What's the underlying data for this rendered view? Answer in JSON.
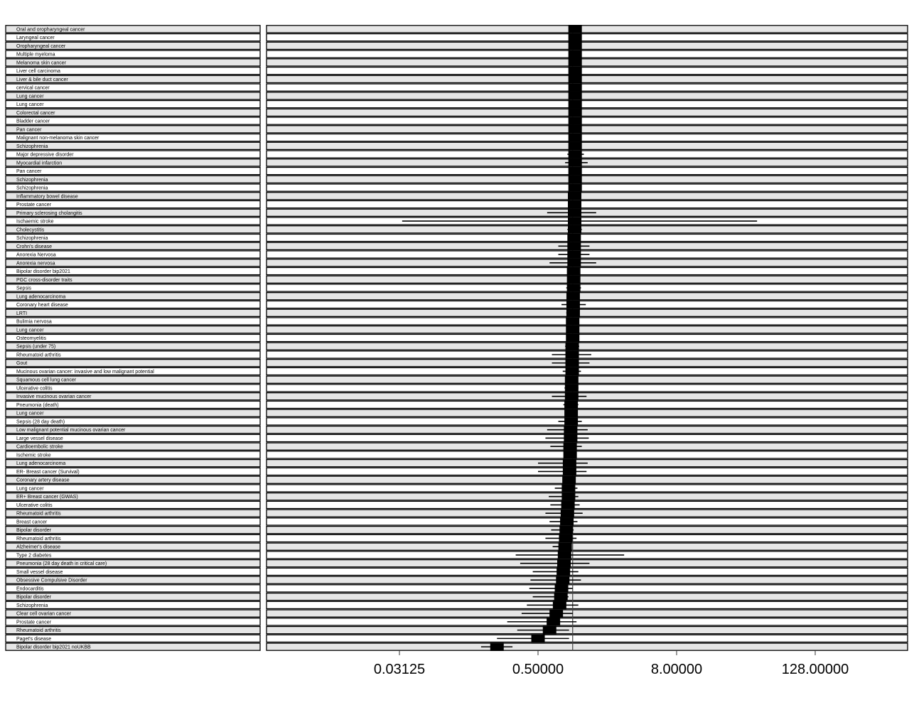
{
  "chart_data": {
    "type": "forest",
    "x_scale": "log2",
    "x_ticks": [
      0.03125,
      0.5,
      8,
      128
    ],
    "x_tick_labels": [
      "0.03125",
      "0.50000",
      "8.00000",
      "128.00000"
    ],
    "xlim": [
      0.0039,
      1000
    ],
    "reference_line": 1,
    "rows": [
      {
        "label": "Oral and oropharyngeal cancer",
        "or": 1.05,
        "lo": 1.0,
        "hi": 1.1
      },
      {
        "label": "Laryngeal cancer",
        "or": 1.05,
        "lo": 1.0,
        "hi": 1.1
      },
      {
        "label": "Oropharyngeal cancer",
        "or": 1.05,
        "lo": 1.0,
        "hi": 1.1
      },
      {
        "label": "Multiple myeloma",
        "or": 1.05,
        "lo": 1.0,
        "hi": 1.1
      },
      {
        "label": "Melanoma skin cancer",
        "or": 1.05,
        "lo": 1.0,
        "hi": 1.1
      },
      {
        "label": "Liver cell carcinoma",
        "or": 1.05,
        "lo": 1.0,
        "hi": 1.1
      },
      {
        "label": "Liver & bile duct cancer",
        "or": 1.05,
        "lo": 1.0,
        "hi": 1.1
      },
      {
        "label": "cervical cancer",
        "or": 1.05,
        "lo": 1.0,
        "hi": 1.1
      },
      {
        "label": "Lung cancer",
        "or": 1.05,
        "lo": 1.0,
        "hi": 1.1
      },
      {
        "label": "Lung cancer",
        "or": 1.05,
        "lo": 1.0,
        "hi": 1.1
      },
      {
        "label": "Colorectal cancer",
        "or": 1.05,
        "lo": 1.0,
        "hi": 1.1
      },
      {
        "label": "Bladder cancer",
        "or": 1.05,
        "lo": 1.0,
        "hi": 1.1
      },
      {
        "label": "Pan cancer",
        "or": 1.05,
        "lo": 1.0,
        "hi": 1.1
      },
      {
        "label": "Malignant non-melanoma skin cancer",
        "or": 1.05,
        "lo": 1.0,
        "hi": 1.1
      },
      {
        "label": "Schizophrenia",
        "or": 1.05,
        "lo": 1.0,
        "hi": 1.1
      },
      {
        "label": "Major depressive disorder",
        "or": 1.05,
        "lo": 0.9,
        "hi": 1.25
      },
      {
        "label": "Myocardial infarction",
        "or": 1.05,
        "lo": 0.86,
        "hi": 1.35
      },
      {
        "label": "Pan cancer",
        "or": 1.05,
        "lo": 1.0,
        "hi": 1.1
      },
      {
        "label": "Schizophrenia",
        "or": 1.05,
        "lo": 1.0,
        "hi": 1.1
      },
      {
        "label": "Schizophrenia",
        "or": 1.05,
        "lo": 1.0,
        "hi": 1.1
      },
      {
        "label": "Inflammatory bowel disease",
        "or": 1.04,
        "lo": 0.99,
        "hi": 1.1
      },
      {
        "label": "Prostate cancer",
        "or": 1.04,
        "lo": 0.99,
        "hi": 1.1
      },
      {
        "label": "Primary sclerosing cholangitis",
        "or": 1.04,
        "lo": 0.6,
        "hi": 1.6
      },
      {
        "label": "Ischaemic stroke",
        "or": 1.04,
        "lo": 0.033,
        "hi": 40
      },
      {
        "label": "Cholecystitis",
        "or": 1.04,
        "lo": 0.9,
        "hi": 1.2
      },
      {
        "label": "Schizophrenia",
        "or": 1.03,
        "lo": 0.98,
        "hi": 1.08
      },
      {
        "label": "Crohn's disease",
        "or": 1.03,
        "lo": 0.75,
        "hi": 1.4
      },
      {
        "label": "Anorexia Nervosa",
        "or": 1.03,
        "lo": 0.75,
        "hi": 1.4
      },
      {
        "label": "Anorexia nervosa",
        "or": 1.03,
        "lo": 0.63,
        "hi": 1.6
      },
      {
        "label": "Bipolar disorder bip2021",
        "or": 1.02,
        "lo": 0.96,
        "hi": 1.08
      },
      {
        "label": "PGC cross-disorder traits",
        "or": 1.02,
        "lo": 0.96,
        "hi": 1.08
      },
      {
        "label": "Sepsis",
        "or": 1.02,
        "lo": 0.88,
        "hi": 1.18
      },
      {
        "label": "Lung adenocarcinoma",
        "or": 1.01,
        "lo": 0.95,
        "hi": 1.07
      },
      {
        "label": "Coronary heart disease",
        "or": 1.01,
        "lo": 0.8,
        "hi": 1.3
      },
      {
        "label": "LRTI",
        "or": 1.01,
        "lo": 0.88,
        "hi": 1.14
      },
      {
        "label": "Bulimia nervosa",
        "or": 1.0,
        "lo": 0.94,
        "hi": 1.06
      },
      {
        "label": "Lung cancer",
        "or": 1.0,
        "lo": 0.94,
        "hi": 1.06
      },
      {
        "label": "Osteomyelitis",
        "or": 1.0,
        "lo": 0.94,
        "hi": 1.06
      },
      {
        "label": "Sepsis (under 75)",
        "or": 0.99,
        "lo": 0.86,
        "hi": 1.14
      },
      {
        "label": "Rheumatoid arthritis",
        "or": 0.99,
        "lo": 0.66,
        "hi": 1.45
      },
      {
        "label": "Gout",
        "or": 0.99,
        "lo": 0.66,
        "hi": 1.4
      },
      {
        "label": "Mucinous ovarian cancer: invasive and low malignant potential",
        "or": 0.99,
        "lo": 0.82,
        "hi": 1.18
      },
      {
        "label": "Squamous cell lung cancer",
        "or": 0.98,
        "lo": 0.92,
        "hi": 1.04
      },
      {
        "label": "Ulcerative colitis",
        "or": 0.98,
        "lo": 0.85,
        "hi": 1.12
      },
      {
        "label": "Invasive mucinous ovarian cancer",
        "or": 0.98,
        "lo": 0.66,
        "hi": 1.32
      },
      {
        "label": "Pneumonia (death)",
        "or": 0.97,
        "lo": 0.83,
        "hi": 1.12
      },
      {
        "label": "Lung cancer",
        "or": 0.97,
        "lo": 0.91,
        "hi": 1.03
      },
      {
        "label": "Sepsis (28 day death)",
        "or": 0.97,
        "lo": 0.75,
        "hi": 1.2
      },
      {
        "label": "Low malignant potential mucinous ovarian cancer",
        "or": 0.96,
        "lo": 0.6,
        "hi": 1.35
      },
      {
        "label": "Large vessel disease",
        "or": 0.96,
        "lo": 0.58,
        "hi": 1.38
      },
      {
        "label": "Cardioembolic stroke",
        "or": 0.95,
        "lo": 0.64,
        "hi": 1.2
      },
      {
        "label": "Ischemic stroke",
        "or": 0.95,
        "lo": 0.89,
        "hi": 1.01
      },
      {
        "label": "Lung adenocarcinoma",
        "or": 0.94,
        "lo": 0.5,
        "hi": 1.35
      },
      {
        "label": "ER- Breast cancer (Survival)",
        "or": 0.94,
        "lo": 0.5,
        "hi": 1.32
      },
      {
        "label": "Coronary artery disease",
        "or": 0.93,
        "lo": 0.87,
        "hi": 0.99
      },
      {
        "label": "Lung cancer",
        "or": 0.92,
        "lo": 0.7,
        "hi": 1.1
      },
      {
        "label": "ER+ Breast cancer (GWAS)",
        "or": 0.92,
        "lo": 0.62,
        "hi": 1.12
      },
      {
        "label": "Ulcerative colitis",
        "or": 0.91,
        "lo": 0.64,
        "hi": 1.15
      },
      {
        "label": "Rheumatoid arthritis",
        "or": 0.9,
        "lo": 0.58,
        "hi": 1.22
      },
      {
        "label": "Breast cancer",
        "or": 0.89,
        "lo": 0.63,
        "hi": 1.1
      },
      {
        "label": "Bipolar disorder",
        "or": 0.88,
        "lo": 0.65,
        "hi": 1.02
      },
      {
        "label": "Rheumatoid arthritis",
        "or": 0.87,
        "lo": 0.58,
        "hi": 1.08
      },
      {
        "label": "Alzheimer's disease",
        "or": 0.86,
        "lo": 0.67,
        "hi": 0.98
      },
      {
        "label": "Type 2 diabetes",
        "or": 0.85,
        "lo": 0.32,
        "hi": 2.8
      },
      {
        "label": "Pneumonia (28 day death in critical care)",
        "or": 0.84,
        "lo": 0.35,
        "hi": 1.4
      },
      {
        "label": "Small vessel disease",
        "or": 0.83,
        "lo": 0.45,
        "hi": 1.12
      },
      {
        "label": "Obsessive Compulsive Disorder",
        "or": 0.82,
        "lo": 0.43,
        "hi": 1.18
      },
      {
        "label": "Endocarditis",
        "or": 0.8,
        "lo": 0.42,
        "hi": 1.0
      },
      {
        "label": "Bipolar disorder",
        "or": 0.79,
        "lo": 0.45,
        "hi": 0.92
      },
      {
        "label": "Schizophrenia",
        "or": 0.77,
        "lo": 0.4,
        "hi": 1.12
      },
      {
        "label": "Clear cell ovarian cancer",
        "or": 0.72,
        "lo": 0.36,
        "hi": 1.0
      },
      {
        "label": "Prostate cancer",
        "or": 0.68,
        "lo": 0.27,
        "hi": 1.08
      },
      {
        "label": "Rheumatoid arthritis",
        "or": 0.63,
        "lo": 0.33,
        "hi": 0.93
      },
      {
        "label": "Paget's disease",
        "or": 0.5,
        "lo": 0.22,
        "hi": 0.93
      },
      {
        "label": "Bipolar disorder bip2021 noUKBB",
        "or": 0.22,
        "lo": 0.16,
        "hi": 0.3
      }
    ]
  }
}
